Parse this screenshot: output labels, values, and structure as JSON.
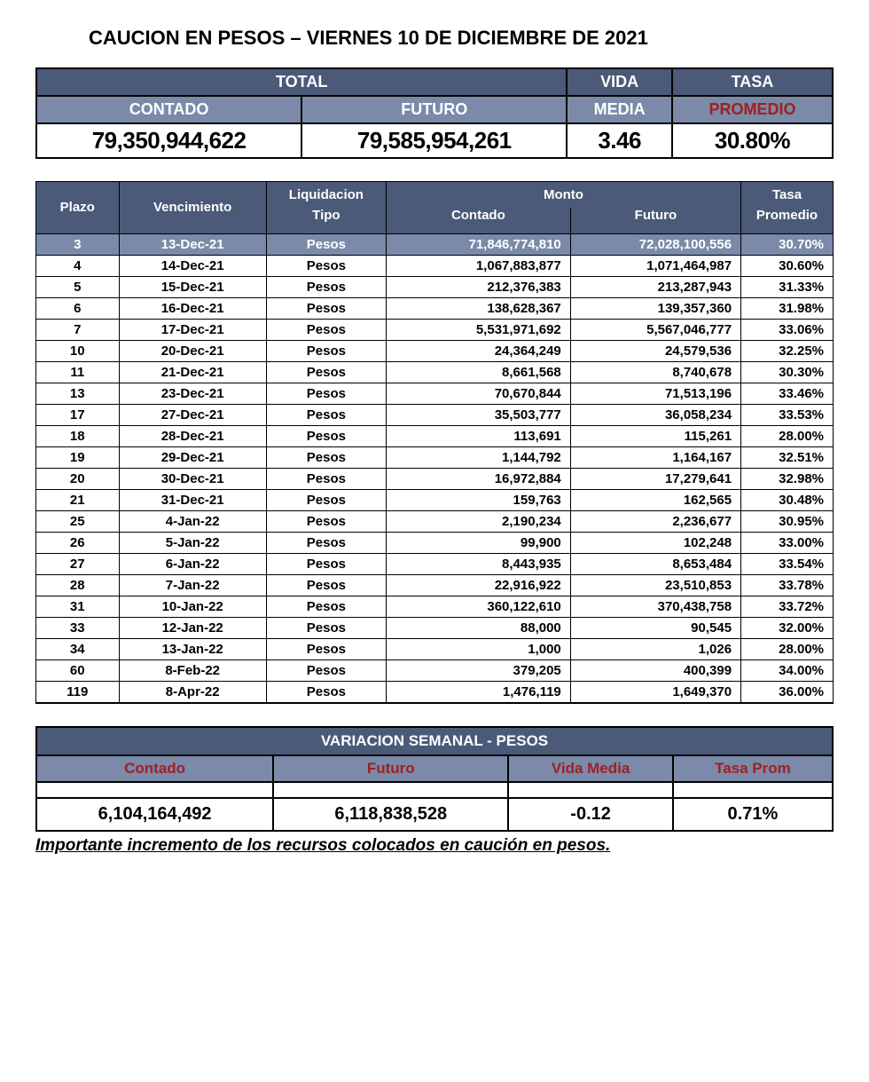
{
  "title": "CAUCION EN PESOS – VIERNES  10 DE DICIEMBRE DE 2021",
  "summary": {
    "headers": {
      "total": "TOTAL",
      "vida": "VIDA",
      "tasa": "TASA",
      "contado": "CONTADO",
      "futuro": "FUTURO",
      "media": "MEDIA",
      "promedio": "PROMEDIO"
    },
    "values": {
      "contado": "79,350,944,622",
      "futuro": "79,585,954,261",
      "vida_media": "3.46",
      "tasa_promedio": "30.80%"
    },
    "colors": {
      "header_dark_bg": "#4a5a78",
      "header_mid_bg": "#7a8aa8",
      "header_text": "#ffffff",
      "header_red_text": "#a02020",
      "value_bg": "#ffffff",
      "value_text": "#000000",
      "border": "#000000"
    }
  },
  "detail": {
    "headers": {
      "plazo": "Plazo",
      "vencimiento": "Vencimiento",
      "liquidacion": "Liquidacion",
      "tipo": "Tipo",
      "monto": "Monto",
      "contado": "Contado",
      "futuro": "Futuro",
      "tasa": "Tasa",
      "promedio": "Promedio"
    },
    "highlight_row_index": 0,
    "rows": [
      {
        "plazo": "3",
        "vencimiento": "13-Dec-21",
        "tipo": "Pesos",
        "contado": "71,846,774,810",
        "futuro": "72,028,100,556",
        "tasa": "30.70%"
      },
      {
        "plazo": "4",
        "vencimiento": "14-Dec-21",
        "tipo": "Pesos",
        "contado": "1,067,883,877",
        "futuro": "1,071,464,987",
        "tasa": "30.60%"
      },
      {
        "plazo": "5",
        "vencimiento": "15-Dec-21",
        "tipo": "Pesos",
        "contado": "212,376,383",
        "futuro": "213,287,943",
        "tasa": "31.33%"
      },
      {
        "plazo": "6",
        "vencimiento": "16-Dec-21",
        "tipo": "Pesos",
        "contado": "138,628,367",
        "futuro": "139,357,360",
        "tasa": "31.98%"
      },
      {
        "plazo": "7",
        "vencimiento": "17-Dec-21",
        "tipo": "Pesos",
        "contado": "5,531,971,692",
        "futuro": "5,567,046,777",
        "tasa": "33.06%"
      },
      {
        "plazo": "10",
        "vencimiento": "20-Dec-21",
        "tipo": "Pesos",
        "contado": "24,364,249",
        "futuro": "24,579,536",
        "tasa": "32.25%"
      },
      {
        "plazo": "11",
        "vencimiento": "21-Dec-21",
        "tipo": "Pesos",
        "contado": "8,661,568",
        "futuro": "8,740,678",
        "tasa": "30.30%"
      },
      {
        "plazo": "13",
        "vencimiento": "23-Dec-21",
        "tipo": "Pesos",
        "contado": "70,670,844",
        "futuro": "71,513,196",
        "tasa": "33.46%"
      },
      {
        "plazo": "17",
        "vencimiento": "27-Dec-21",
        "tipo": "Pesos",
        "contado": "35,503,777",
        "futuro": "36,058,234",
        "tasa": "33.53%"
      },
      {
        "plazo": "18",
        "vencimiento": "28-Dec-21",
        "tipo": "Pesos",
        "contado": "113,691",
        "futuro": "115,261",
        "tasa": "28.00%"
      },
      {
        "plazo": "19",
        "vencimiento": "29-Dec-21",
        "tipo": "Pesos",
        "contado": "1,144,792",
        "futuro": "1,164,167",
        "tasa": "32.51%"
      },
      {
        "plazo": "20",
        "vencimiento": "30-Dec-21",
        "tipo": "Pesos",
        "contado": "16,972,884",
        "futuro": "17,279,641",
        "tasa": "32.98%"
      },
      {
        "plazo": "21",
        "vencimiento": "31-Dec-21",
        "tipo": "Pesos",
        "contado": "159,763",
        "futuro": "162,565",
        "tasa": "30.48%"
      },
      {
        "plazo": "25",
        "vencimiento": "4-Jan-22",
        "tipo": "Pesos",
        "contado": "2,190,234",
        "futuro": "2,236,677",
        "tasa": "30.95%"
      },
      {
        "plazo": "26",
        "vencimiento": "5-Jan-22",
        "tipo": "Pesos",
        "contado": "99,900",
        "futuro": "102,248",
        "tasa": "33.00%"
      },
      {
        "plazo": "27",
        "vencimiento": "6-Jan-22",
        "tipo": "Pesos",
        "contado": "8,443,935",
        "futuro": "8,653,484",
        "tasa": "33.54%"
      },
      {
        "plazo": "28",
        "vencimiento": "7-Jan-22",
        "tipo": "Pesos",
        "contado": "22,916,922",
        "futuro": "23,510,853",
        "tasa": "33.78%"
      },
      {
        "plazo": "31",
        "vencimiento": "10-Jan-22",
        "tipo": "Pesos",
        "contado": "360,122,610",
        "futuro": "370,438,758",
        "tasa": "33.72%"
      },
      {
        "plazo": "33",
        "vencimiento": "12-Jan-22",
        "tipo": "Pesos",
        "contado": "88,000",
        "futuro": "90,545",
        "tasa": "32.00%"
      },
      {
        "plazo": "34",
        "vencimiento": "13-Jan-22",
        "tipo": "Pesos",
        "contado": "1,000",
        "futuro": "1,026",
        "tasa": "28.00%"
      },
      {
        "plazo": "60",
        "vencimiento": "8-Feb-22",
        "tipo": "Pesos",
        "contado": "379,205",
        "futuro": "400,399",
        "tasa": "34.00%"
      },
      {
        "plazo": "119",
        "vencimiento": "8-Apr-22",
        "tipo": "Pesos",
        "contado": "1,476,119",
        "futuro": "1,649,370",
        "tasa": "36.00%"
      }
    ],
    "colors": {
      "header_bg": "#4a5a78",
      "header_text": "#ffffff",
      "highlight_bg": "#7a8aa8",
      "highlight_text": "#ffffff",
      "row_bg": "#ffffff",
      "row_text": "#000000",
      "border": "#000000"
    }
  },
  "variation": {
    "title": "VARIACION SEMANAL - PESOS",
    "headers": {
      "contado": "Contado",
      "futuro": "Futuro",
      "vida_media": "Vida Media",
      "tasa_prom": "Tasa Prom"
    },
    "values": {
      "contado": "6,104,164,492",
      "futuro": "6,118,838,528",
      "vida_media": "-0.12",
      "tasa_prom": "0.71%"
    },
    "colors": {
      "title_bg": "#4a5a78",
      "title_text": "#ffffff",
      "header_bg": "#7a8aa8",
      "header_text": "#a02020",
      "value_bg": "#ffffff",
      "value_text": "#000000",
      "border": "#000000"
    }
  },
  "footnote": "Importante incremento de los recursos colocados en caución en pesos."
}
